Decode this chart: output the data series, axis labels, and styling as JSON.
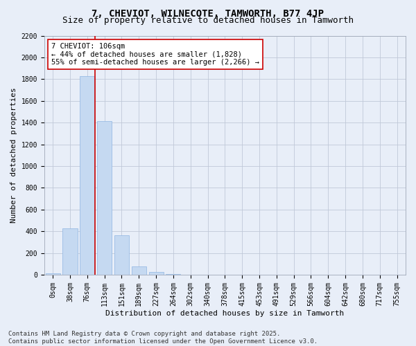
{
  "title": "7, CHEVIOT, WILNECOTE, TAMWORTH, B77 4JP",
  "subtitle": "Size of property relative to detached houses in Tamworth",
  "xlabel": "Distribution of detached houses by size in Tamworth",
  "ylabel": "Number of detached properties",
  "footer_line1": "Contains HM Land Registry data © Crown copyright and database right 2025.",
  "footer_line2": "Contains public sector information licensed under the Open Government Licence v3.0.",
  "bar_labels": [
    "0sqm",
    "38sqm",
    "76sqm",
    "113sqm",
    "151sqm",
    "189sqm",
    "227sqm",
    "264sqm",
    "302sqm",
    "340sqm",
    "378sqm",
    "415sqm",
    "453sqm",
    "491sqm",
    "529sqm",
    "566sqm",
    "604sqm",
    "642sqm",
    "680sqm",
    "717sqm",
    "755sqm"
  ],
  "bar_values": [
    10,
    425,
    1828,
    1415,
    365,
    75,
    25,
    5,
    0,
    0,
    0,
    0,
    0,
    0,
    0,
    0,
    0,
    0,
    0,
    0,
    0
  ],
  "bar_color": "#c5d9f1",
  "bar_edgecolor": "#8db4e2",
  "vline_color": "#cc0000",
  "annotation_text": "7 CHEVIOT: 106sqm\n← 44% of detached houses are smaller (1,828)\n55% of semi-detached houses are larger (2,266) →",
  "annotation_box_color": "#ffffff",
  "annotation_box_edgecolor": "#cc0000",
  "ylim": [
    0,
    2200
  ],
  "yticks": [
    0,
    200,
    400,
    600,
    800,
    1000,
    1200,
    1400,
    1600,
    1800,
    2000,
    2200
  ],
  "grid_color": "#c0c8d8",
  "background_color": "#e8eef8",
  "title_fontsize": 10,
  "subtitle_fontsize": 9,
  "axis_label_fontsize": 8,
  "tick_fontsize": 7,
  "annotation_fontsize": 7.5,
  "footer_fontsize": 6.5
}
